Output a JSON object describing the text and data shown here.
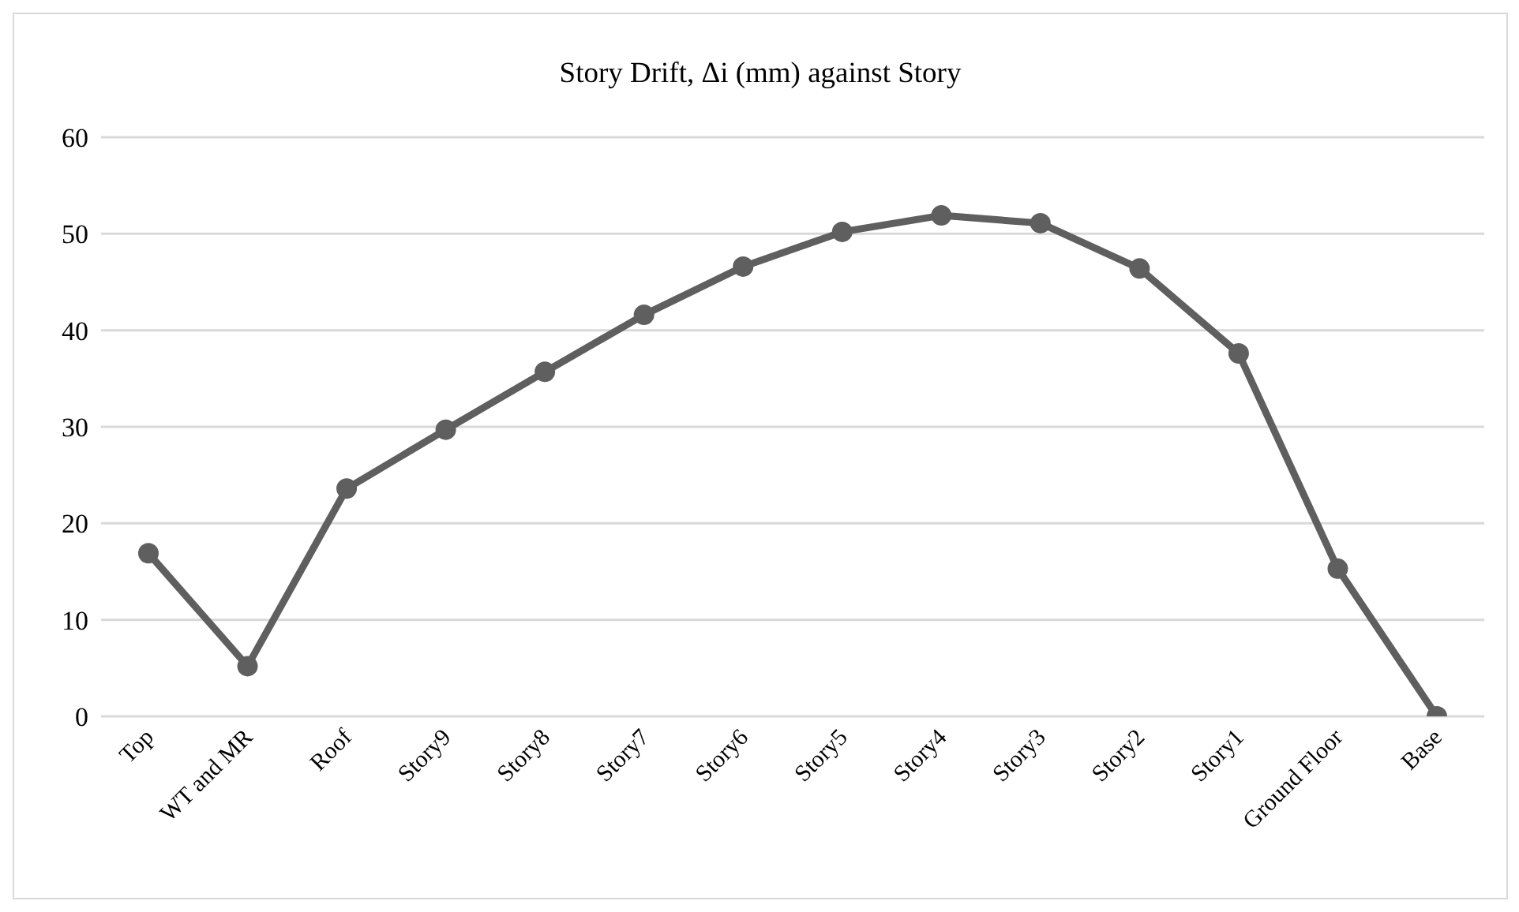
{
  "chart_data": {
    "type": "line",
    "title": "Story Drift, Δi (mm) against Story",
    "categories": [
      "Top",
      "WT and MR",
      "Roof",
      "Story9",
      "Story8",
      "Story7",
      "Story6",
      "Story5",
      "Story4",
      "Story3",
      "Story2",
      "Story1",
      "Ground Floor",
      "Base"
    ],
    "series": [
      {
        "color": "#5f5f5f",
        "values": [
          16.9,
          5.2,
          23.6,
          29.7,
          35.7,
          41.6,
          46.6,
          50.2,
          51.9,
          51.1,
          46.4,
          37.6,
          15.3,
          0
        ]
      }
    ],
    "ylim": [
      0,
      60
    ],
    "yticks": [
      0,
      10,
      20,
      30,
      40,
      50,
      60
    ],
    "grid": "y",
    "marker": "circle",
    "line_style": "solid",
    "legend": false
  }
}
